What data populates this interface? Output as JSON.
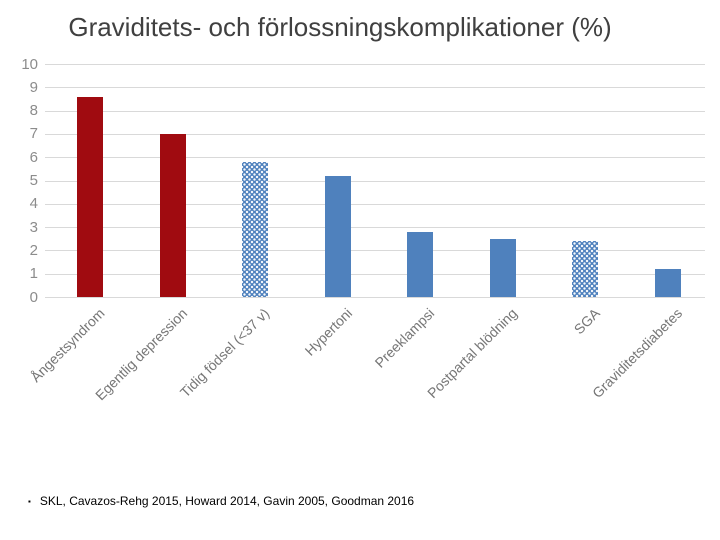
{
  "title": "Graviditets- och förlossningskomplikationer (%)",
  "footer": {
    "bullet": "▪",
    "text": "SKL, Cavazos-Rehg 2015, Howard 2014, Gavin 2005,  Goodman 2016"
  },
  "colors": {
    "bar_dark_red": "#a00b10",
    "bar_blue": "#4f81bd",
    "gridline": "#d9d9d9",
    "axis_text": "#8c8c8c",
    "xlabel_text": "#767676",
    "title_text": "#404040"
  },
  "chart_data": {
    "type": "bar",
    "title": "Graviditets- och förlossningskomplikationer (%)",
    "categories": [
      "Ångestsyndrom",
      "Egentlig depression",
      "Tidig födsel (<37 v)",
      "Hypertoni",
      "Preeklampsi",
      "Postpartal blödning",
      "SGA",
      "Graviditetsdiabetes"
    ],
    "values": [
      8.6,
      7,
      5.8,
      5.2,
      2.8,
      2.5,
      2.4,
      1.2
    ],
    "bar_styles": [
      "solid-red",
      "solid-red",
      "pattern-blue",
      "solid-blue",
      "solid-blue",
      "solid-blue",
      "pattern-blue",
      "solid-blue"
    ],
    "xlabel": "",
    "ylabel": "",
    "ylim": [
      0,
      10
    ],
    "ytick_step": 1,
    "yticks": [
      0,
      1,
      2,
      3,
      4,
      5,
      6,
      7,
      8,
      9,
      10
    ],
    "grid": "horizontal",
    "legend_position": "none"
  }
}
